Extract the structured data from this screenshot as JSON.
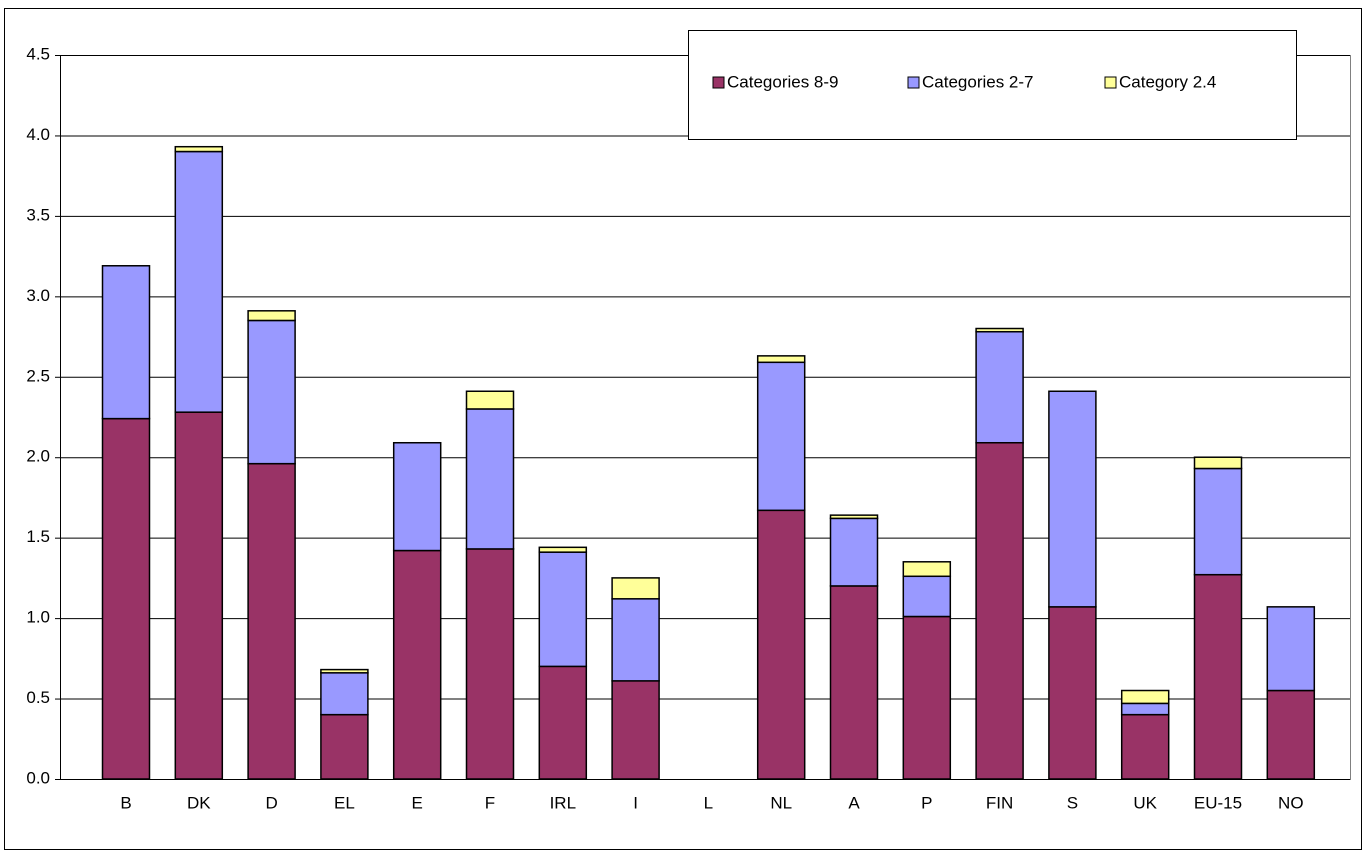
{
  "chart_data": {
    "type": "stacked_bar",
    "categories": [
      "B",
      "DK",
      "D",
      "EL",
      "E",
      "F",
      "IRL",
      "I",
      "L",
      "NL",
      "A",
      "P",
      "FIN",
      "S",
      "UK",
      "EU-15",
      "NO"
    ],
    "series": [
      {
        "name": "Categories 8-9",
        "color": "#993366",
        "values": [
          2.24,
          2.28,
          1.96,
          0.4,
          1.42,
          1.43,
          0.7,
          0.61,
          null,
          1.67,
          1.2,
          1.01,
          2.09,
          1.07,
          0.4,
          1.27,
          0.55
        ]
      },
      {
        "name": "Categories 2-7",
        "color": "#9999ff",
        "values": [
          0.95,
          1.62,
          0.89,
          0.26,
          0.67,
          0.87,
          0.71,
          0.51,
          null,
          0.92,
          0.42,
          0.25,
          0.69,
          1.34,
          0.07,
          0.66,
          0.52
        ]
      },
      {
        "name": "Category 2.4",
        "color": "#ffff99",
        "values": [
          0,
          0.03,
          0.06,
          0.02,
          0,
          0.11,
          0.03,
          0.13,
          null,
          0.04,
          0.02,
          0.09,
          0.02,
          0,
          0.08,
          0.07,
          0
        ]
      }
    ],
    "ylim": [
      0,
      4.5
    ],
    "yticks": [
      {
        "value": 0,
        "label": "0.0"
      },
      0.5,
      {
        "value": 1,
        "label": "1.0"
      },
      1.5,
      {
        "value": 2,
        "label": "2.0"
      },
      2.5,
      {
        "value": 3,
        "label": "3.0"
      },
      3.5,
      {
        "value": 4,
        "label": "4.0"
      },
      4.5
    ],
    "grid": true
  }
}
